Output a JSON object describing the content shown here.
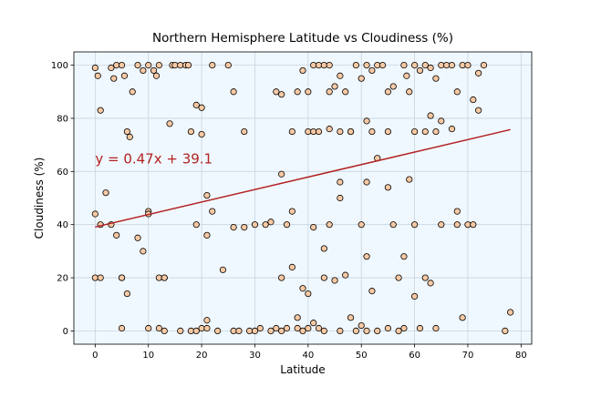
{
  "chart_data": {
    "type": "scatter",
    "title": "Northern Hemisphere Latitude vs Cloudiness (%)",
    "xlabel": "Latitude",
    "ylabel": "Cloudiness (%)",
    "xlim": [
      -4,
      82
    ],
    "ylim": [
      -5,
      105
    ],
    "xticks": [
      0,
      10,
      20,
      30,
      40,
      50,
      60,
      70,
      80
    ],
    "yticks": [
      0,
      20,
      40,
      60,
      80,
      100
    ],
    "grid": true,
    "annotation": "y = 0.47x + 39.1",
    "regression": {
      "slope": 0.47,
      "intercept": 39.1,
      "x_range": [
        0,
        78
      ]
    },
    "colors": {
      "plot_background": "#f0f8ff",
      "point_fill": "#f7c9a4",
      "point_edge": "#000000",
      "line": "#b22222",
      "annotation": "#b22222",
      "grid": "#c8d4de"
    },
    "points": [
      [
        0,
        99
      ],
      [
        0.5,
        96
      ],
      [
        1,
        83
      ],
      [
        3,
        99
      ],
      [
        3.5,
        95
      ],
      [
        4,
        100
      ],
      [
        5,
        100
      ],
      [
        5.5,
        96
      ],
      [
        6,
        75
      ],
      [
        6.5,
        73
      ],
      [
        7,
        90
      ],
      [
        8,
        100
      ],
      [
        9,
        98
      ],
      [
        10,
        100
      ],
      [
        11,
        98
      ],
      [
        11.5,
        96
      ],
      [
        12,
        100
      ],
      [
        14,
        78
      ],
      [
        14.5,
        100
      ],
      [
        15,
        100
      ],
      [
        16,
        100
      ],
      [
        17,
        100
      ],
      [
        17.5,
        100
      ],
      [
        18,
        75
      ],
      [
        19,
        85
      ],
      [
        20,
        84
      ],
      [
        20,
        74
      ],
      [
        22,
        100
      ],
      [
        25,
        100
      ],
      [
        26,
        90
      ],
      [
        28,
        75
      ],
      [
        34,
        90
      ],
      [
        35,
        89
      ],
      [
        37,
        75
      ],
      [
        38,
        90
      ],
      [
        39,
        98
      ],
      [
        40,
        90
      ],
      [
        41,
        100
      ],
      [
        42,
        100
      ],
      [
        43,
        100
      ],
      [
        44,
        100
      ],
      [
        44,
        90
      ],
      [
        45,
        92
      ],
      [
        46,
        96
      ],
      [
        47,
        90
      ],
      [
        48,
        75
      ],
      [
        49,
        100
      ],
      [
        50,
        95
      ],
      [
        51,
        100
      ],
      [
        52,
        98
      ],
      [
        53,
        100
      ],
      [
        54,
        100
      ],
      [
        55,
        90
      ],
      [
        56,
        92
      ],
      [
        58,
        100
      ],
      [
        58.5,
        96
      ],
      [
        59,
        90
      ],
      [
        60,
        100
      ],
      [
        61,
        98
      ],
      [
        62,
        100
      ],
      [
        63,
        99
      ],
      [
        64,
        95
      ],
      [
        65,
        100
      ],
      [
        66,
        100
      ],
      [
        67,
        100
      ],
      [
        68,
        90
      ],
      [
        69,
        100
      ],
      [
        70,
        100
      ],
      [
        71,
        87
      ],
      [
        72,
        97
      ],
      [
        73,
        100
      ],
      [
        40,
        75
      ],
      [
        41,
        75
      ],
      [
        42,
        75
      ],
      [
        44,
        76
      ],
      [
        46,
        75
      ],
      [
        48,
        75
      ],
      [
        51,
        79
      ],
      [
        52,
        75
      ],
      [
        55,
        75
      ],
      [
        60,
        75
      ],
      [
        62,
        75
      ],
      [
        63,
        81
      ],
      [
        64,
        75
      ],
      [
        65,
        79
      ],
      [
        67,
        76
      ],
      [
        72,
        83
      ],
      [
        3,
        40
      ],
      [
        5,
        20
      ],
      [
        6,
        14
      ],
      [
        8,
        35
      ],
      [
        9,
        30
      ],
      [
        10,
        45
      ],
      [
        12,
        20
      ],
      [
        13,
        20
      ],
      [
        19,
        40
      ],
      [
        21,
        51
      ],
      [
        22,
        45
      ],
      [
        24,
        23
      ],
      [
        26,
        39
      ],
      [
        28,
        39
      ],
      [
        30,
        40
      ],
      [
        32,
        40
      ],
      [
        33,
        41
      ],
      [
        35,
        20
      ],
      [
        35,
        59
      ],
      [
        36,
        40
      ],
      [
        37,
        24
      ],
      [
        37,
        45
      ],
      [
        38,
        5
      ],
      [
        39,
        16
      ],
      [
        40,
        14
      ],
      [
        41,
        39
      ],
      [
        43,
        20
      ],
      [
        43,
        31
      ],
      [
        44,
        40
      ],
      [
        45,
        19
      ],
      [
        46,
        50
      ],
      [
        46,
        56
      ],
      [
        47,
        21
      ],
      [
        48,
        5
      ],
      [
        50,
        40
      ],
      [
        51,
        28
      ],
      [
        51,
        56
      ],
      [
        52,
        15
      ],
      [
        53,
        65
      ],
      [
        55,
        54
      ],
      [
        56,
        40
      ],
      [
        57,
        20
      ],
      [
        58,
        28
      ],
      [
        59,
        57
      ],
      [
        60,
        40
      ],
      [
        60,
        13
      ],
      [
        62,
        20
      ],
      [
        63,
        18
      ],
      [
        65,
        40
      ],
      [
        68,
        45
      ],
      [
        68,
        40
      ],
      [
        70,
        40
      ],
      [
        71,
        40
      ],
      [
        69,
        5
      ],
      [
        78,
        7
      ],
      [
        0,
        44
      ],
      [
        1,
        40
      ],
      [
        2,
        52
      ],
      [
        4,
        36
      ],
      [
        5,
        20
      ],
      [
        10,
        44
      ],
      [
        13,
        20
      ],
      [
        21,
        36
      ],
      [
        21,
        4
      ],
      [
        0,
        20
      ],
      [
        1,
        20
      ],
      [
        5,
        1
      ],
      [
        10,
        1
      ],
      [
        12,
        1
      ],
      [
        13,
        0
      ],
      [
        16,
        0
      ],
      [
        18,
        0
      ],
      [
        19,
        0
      ],
      [
        20,
        1
      ],
      [
        21,
        1
      ],
      [
        23,
        0
      ],
      [
        26,
        0
      ],
      [
        27,
        0
      ],
      [
        29,
        0
      ],
      [
        30,
        0
      ],
      [
        31,
        1
      ],
      [
        33,
        0
      ],
      [
        34,
        1
      ],
      [
        35,
        0
      ],
      [
        36,
        1
      ],
      [
        38,
        1
      ],
      [
        39,
        0
      ],
      [
        40,
        1
      ],
      [
        41,
        3
      ],
      [
        42,
        1
      ],
      [
        43,
        0
      ],
      [
        46,
        0
      ],
      [
        49,
        0
      ],
      [
        50,
        2
      ],
      [
        51,
        0
      ],
      [
        53,
        0
      ],
      [
        55,
        1
      ],
      [
        57,
        0
      ],
      [
        58,
        1
      ],
      [
        61,
        1
      ],
      [
        64,
        1
      ],
      [
        77,
        0
      ]
    ]
  }
}
